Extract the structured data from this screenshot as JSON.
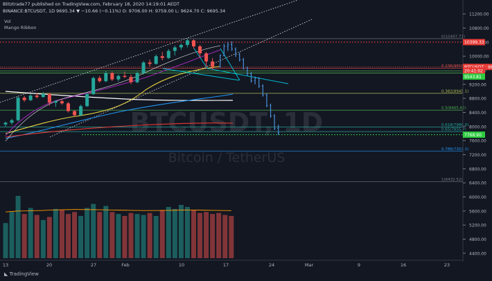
{
  "header": {
    "line1": "Blitztrade77 published on TradingView.com, February 18, 2020 14:19:01 AEDT",
    "line2": "BINANCE:BTCUSDT, 1D 9695.34 ▼ −10.66 (−0.11%) O: 9706.00 H: 9759.00 L: 9624.70 C: 9695.34"
  },
  "indicators": [
    "Vol",
    "Mango Ribbon"
  ],
  "watermark": {
    "symbol": "BTCUSDT, 1D",
    "pair": "Bitcoin / TetherUS"
  },
  "brand": "TradingView",
  "colors": {
    "bg": "#131722",
    "up": "#26a69a",
    "down": "#ef5350",
    "wick": "#4a90d9"
  },
  "chart_data": {
    "type": "candlestick",
    "y_axis": {
      "range": [
        4200,
        11400
      ],
      "ticks": [
        11200,
        10800,
        10400,
        10000,
        9600,
        9200,
        8800,
        8400,
        8000,
        7600,
        7200,
        6800,
        6400,
        6000,
        5600,
        5200,
        4800,
        4400
      ]
    },
    "x_axis": {
      "tick_labels": [
        "13",
        "20",
        "27",
        "Feb",
        "10",
        "17",
        "24",
        "Mar",
        "9",
        "16",
        "23"
      ]
    },
    "fib_levels": [
      {
        "label": "0(10497.71)",
        "value": 10497.71
      },
      {
        "label": "0.236(9658.7)",
        "value": 9658.7
      },
      {
        "label": "0.382(8945.1)",
        "value": 8945.1
      },
      {
        "label": "0.5(8465.62)",
        "value": 8465.62
      },
      {
        "label": "0.618(7986.0)",
        "value": 7986.0
      },
      {
        "label": "0.65(7855.7)",
        "value": 7855.7
      },
      {
        "label": "0.786(7303.2)",
        "value": 7303.2
      },
      {
        "label": "1(6432.52)",
        "value": 6432.52
      }
    ],
    "price_tags": [
      {
        "label": "10399.33",
        "value": 10399.33,
        "color": "#e53935"
      },
      {
        "label": "BTCUSDT · 9695.34",
        "value": 9695.34,
        "color": "#e53935"
      },
      {
        "label": "20:41:02",
        "value": 9590,
        "color": "#e53935"
      },
      {
        "label": "9543.81",
        "value": 9420,
        "color": "#2ecc40"
      },
      {
        "label": "7768.90",
        "value": 7768.9,
        "color": "#2ecc40"
      }
    ],
    "candles_daily": [
      [
        8060,
        8140,
        8000,
        8110
      ],
      [
        8110,
        8220,
        8050,
        8180
      ],
      [
        8180,
        8860,
        8150,
        8820
      ],
      [
        8820,
        8870,
        8700,
        8750
      ],
      [
        8750,
        8920,
        8720,
        8880
      ],
      [
        8880,
        8950,
        8800,
        8840
      ],
      [
        8840,
        8980,
        8820,
        8930
      ],
      [
        8930,
        8950,
        8600,
        8680
      ],
      [
        8680,
        8750,
        8560,
        8720
      ],
      [
        8720,
        8780,
        8620,
        8660
      ],
      [
        8660,
        8700,
        8400,
        8440
      ],
      [
        8440,
        8460,
        8280,
        8320
      ],
      [
        8320,
        8620,
        8300,
        8580
      ],
      [
        8580,
        8960,
        8560,
        8920
      ],
      [
        8920,
        9420,
        8900,
        9380
      ],
      [
        9380,
        9440,
        9250,
        9290
      ],
      [
        9290,
        9580,
        9260,
        9520
      ],
      [
        9520,
        9560,
        9290,
        9340
      ],
      [
        9340,
        9480,
        9280,
        9440
      ],
      [
        9440,
        9560,
        9380,
        9410
      ],
      [
        9410,
        9480,
        9200,
        9260
      ],
      [
        9260,
        9560,
        9230,
        9520
      ],
      [
        9520,
        9860,
        9480,
        9820
      ],
      [
        9820,
        9900,
        9700,
        9780
      ],
      [
        9780,
        10050,
        9760,
        10000
      ],
      [
        10000,
        10120,
        9880,
        9950
      ],
      [
        9950,
        10200,
        9920,
        10150
      ],
      [
        10150,
        10300,
        10020,
        10250
      ],
      [
        10250,
        10360,
        10180,
        10320
      ],
      [
        10320,
        10500,
        10250,
        10450
      ],
      [
        10450,
        10480,
        10220,
        10280
      ],
      [
        10280,
        10320,
        9950,
        10080
      ],
      [
        10080,
        10120,
        9700,
        9850
      ],
      [
        9850,
        9950,
        9620,
        9700
      ]
    ],
    "candles_tail": [
      [
        9700,
        10050,
        9680,
        10020
      ],
      [
        10020,
        10350,
        10000,
        10280
      ],
      [
        10280,
        10400,
        10150,
        10330
      ],
      [
        10330,
        10420,
        10150,
        10200
      ],
      [
        10200,
        10250,
        9980,
        10050
      ],
      [
        10050,
        10100,
        9850,
        9900
      ],
      [
        9900,
        9950,
        9620,
        9660
      ],
      [
        9660,
        9700,
        9450,
        9500
      ],
      [
        9500,
        9550,
        9250,
        9300
      ],
      [
        9300,
        9420,
        9200,
        9380
      ],
      [
        9380,
        9400,
        9100,
        9150
      ],
      [
        9150,
        9200,
        8850,
        8900
      ],
      [
        8900,
        8950,
        8550,
        8600
      ],
      [
        8600,
        8650,
        8250,
        8300
      ],
      [
        8300,
        8350,
        7900,
        7950
      ],
      [
        7950,
        8050,
        7760,
        7820
      ]
    ],
    "volume": [
      3500,
      4600,
      6200,
      4400,
      5000,
      4300,
      3800,
      4100,
      4900,
      4800,
      4400,
      4600,
      4200,
      5000,
      5400,
      4600,
      5200,
      4600,
      4400,
      4200,
      4500,
      4400,
      4300,
      4500,
      4200,
      4800,
      5100,
      4900,
      5300,
      5100,
      4800,
      4500,
      4600,
      4400,
      4500,
      4300,
      4200
    ],
    "volume_ma": [
      4600,
      4650,
      4700,
      4700,
      4720,
      4730,
      4750,
      4780,
      4800,
      4820,
      4830,
      4850,
      4840,
      4840,
      4830,
      4820,
      4810,
      4790,
      4780,
      4770,
      4760,
      4750,
      4740,
      4740,
      4740,
      4750,
      4760,
      4770,
      4780,
      4790,
      4790,
      4780,
      4770,
      4760,
      4750,
      4740,
      4730
    ]
  }
}
